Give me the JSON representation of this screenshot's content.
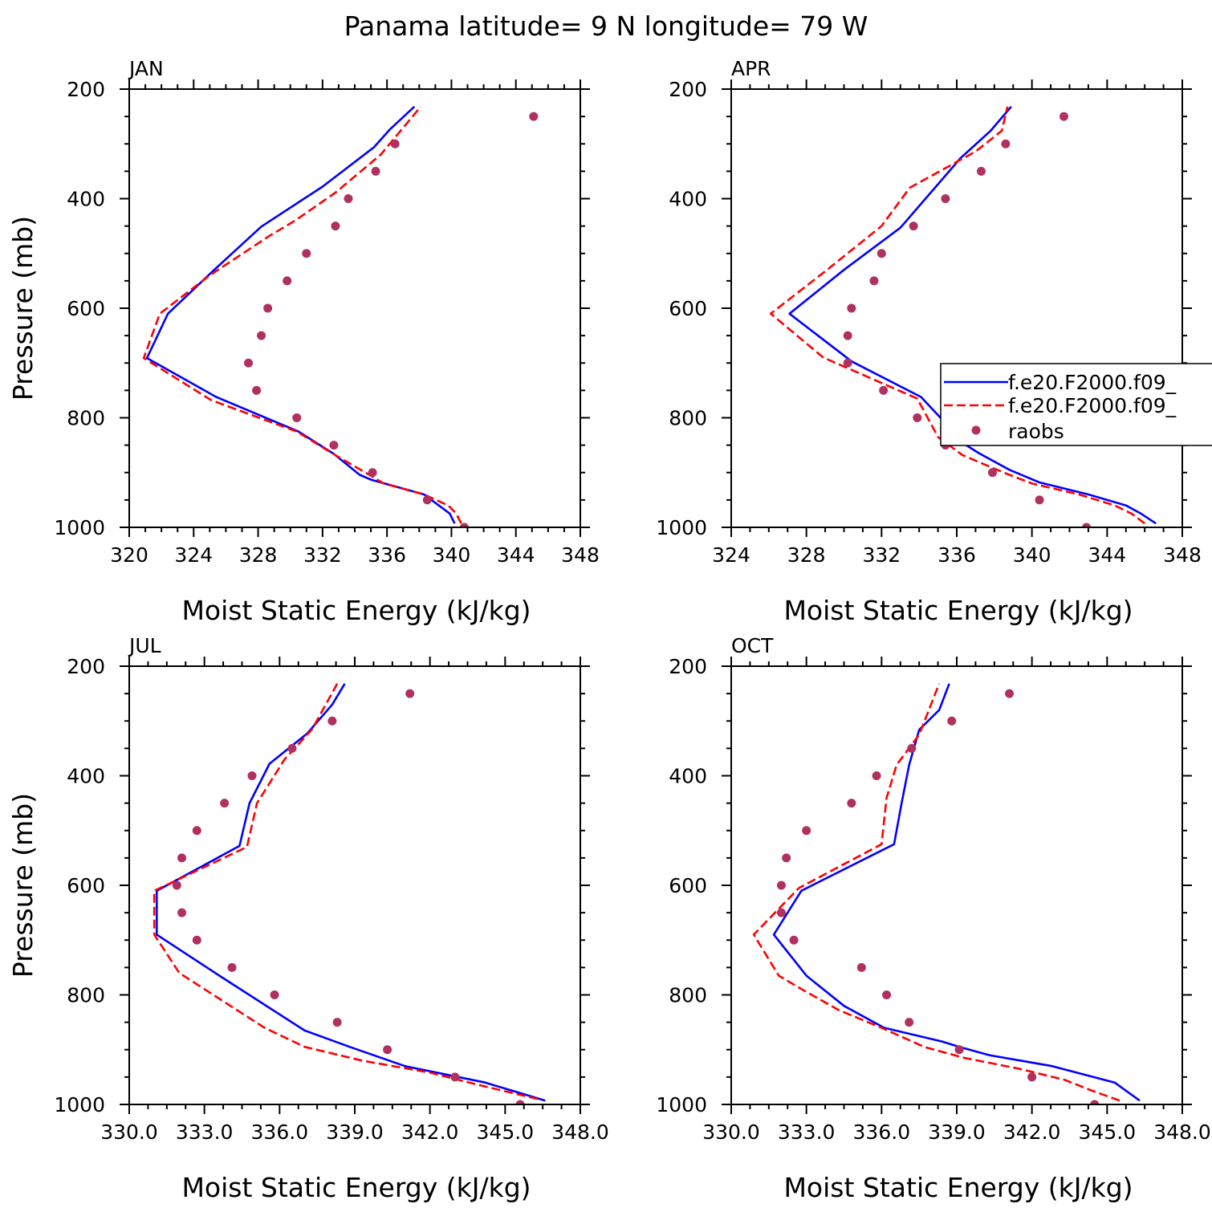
{
  "title": "Panama  latitude= 9 N longitude= 79 W",
  "legend_entries": [
    "f.e20.F2000.f09_",
    "f.e20.F2000.f09_",
    "raobs"
  ],
  "colors": {
    "model_a": "#0000ff",
    "model_b": "#ff0000",
    "raobs": "#b03060"
  },
  "chart_data": [
    {
      "type": "line",
      "panel": "JAN",
      "xlabel": "Moist Static Energy (kJ/kg)",
      "ylabel": "Pressure (mb)",
      "xlim": [
        320,
        348
      ],
      "ylim": [
        1000,
        200
      ],
      "xticks": [
        "320",
        "324",
        "328",
        "332",
        "336",
        "340",
        "344",
        "348"
      ],
      "yticks": [
        "200",
        "400",
        "600",
        "800",
        "1000"
      ],
      "series": [
        {
          "name": "f.e20.F2000.f09_",
          "style": "solid",
          "points": [
            [
              340.2,
              993
            ],
            [
              339.9,
              975
            ],
            [
              338.3,
              940
            ],
            [
              335.0,
              913
            ],
            [
              334.3,
              904
            ],
            [
              332.7,
              866
            ],
            [
              330.5,
              825
            ],
            [
              325.4,
              762
            ],
            [
              321.1,
              691
            ],
            [
              322.4,
              610
            ],
            [
              325.2,
              532
            ],
            [
              328.2,
              451
            ],
            [
              332.0,
              378
            ],
            [
              335.2,
              306
            ],
            [
              336.2,
              273
            ],
            [
              337.7,
              232
            ]
          ]
        },
        {
          "name": "f.e20.F2000.f09_",
          "style": "dashed",
          "points": [
            [
              340.6,
              993
            ],
            [
              340.3,
              975
            ],
            [
              339.8,
              960
            ],
            [
              338.3,
              940
            ],
            [
              335.8,
              920
            ],
            [
              335.0,
              906
            ],
            [
              332.9,
              870
            ],
            [
              330.4,
              825
            ],
            [
              325.1,
              768
            ],
            [
              320.9,
              691
            ],
            [
              321.9,
              610
            ],
            [
              325.0,
              540
            ],
            [
              328.7,
              468
            ],
            [
              330.3,
              440
            ],
            [
              332.8,
              389
            ],
            [
              335.6,
              320
            ],
            [
              338.1,
              232
            ]
          ]
        },
        {
          "name": "raobs",
          "style": "dots",
          "points": [
            [
              340.8,
              1000
            ],
            [
              338.5,
              950
            ],
            [
              335.1,
              900
            ],
            [
              332.7,
              850
            ],
            [
              330.4,
              800
            ],
            [
              327.9,
              750
            ],
            [
              327.4,
              700
            ],
            [
              328.2,
              650
            ],
            [
              328.6,
              600
            ],
            [
              329.8,
              550
            ],
            [
              331.0,
              500
            ],
            [
              332.8,
              450
            ],
            [
              333.6,
              400
            ],
            [
              335.3,
              350
            ],
            [
              336.5,
              300
            ],
            [
              345.1,
              250
            ]
          ]
        }
      ]
    },
    {
      "type": "line",
      "panel": "APR",
      "xlabel": "Moist Static Energy (kJ/kg)",
      "ylabel": "",
      "xlim": [
        324,
        348
      ],
      "ylim": [
        1000,
        200
      ],
      "xticks": [
        "324",
        "328",
        "332",
        "336",
        "340",
        "344",
        "348"
      ],
      "yticks": [
        "200",
        "400",
        "600",
        "800",
        "1000"
      ],
      "series": [
        {
          "name": "f.e20.F2000.f09_",
          "style": "solid",
          "points": [
            [
              346.6,
              993
            ],
            [
              345.8,
              975
            ],
            [
              345.0,
              960
            ],
            [
              343.0,
              940
            ],
            [
              340.4,
              918
            ],
            [
              338.8,
              895
            ],
            [
              337.2,
              865
            ],
            [
              336.5,
              850
            ],
            [
              334.1,
              762
            ],
            [
              330.4,
              697
            ],
            [
              327.1,
              610
            ],
            [
              330.0,
              530
            ],
            [
              333.0,
              453
            ],
            [
              336.2,
              326
            ],
            [
              337.8,
              276
            ],
            [
              338.9,
              232
            ]
          ]
        },
        {
          "name": "f.e20.F2000.f09_",
          "style": "dashed",
          "points": [
            [
              346.0,
              993
            ],
            [
              345.3,
              975
            ],
            [
              344.4,
              960
            ],
            [
              342.5,
              940
            ],
            [
              340.0,
              920
            ],
            [
              338.5,
              900
            ],
            [
              336.3,
              868
            ],
            [
              335.0,
              835
            ],
            [
              333.9,
              765
            ],
            [
              328.9,
              690
            ],
            [
              326.1,
              610
            ],
            [
              329.1,
              530
            ],
            [
              332.0,
              450
            ],
            [
              333.5,
              380
            ],
            [
              337.0,
              314
            ],
            [
              338.4,
              276
            ],
            [
              338.7,
              232
            ]
          ]
        },
        {
          "name": "raobs",
          "style": "dots",
          "points": [
            [
              342.9,
              1000
            ],
            [
              340.4,
              950
            ],
            [
              337.9,
              900
            ],
            [
              335.4,
              850
            ],
            [
              333.9,
              800
            ],
            [
              332.1,
              750
            ],
            [
              330.2,
              700
            ],
            [
              330.2,
              650
            ],
            [
              330.4,
              600
            ],
            [
              331.6,
              550
            ],
            [
              332.0,
              500
            ],
            [
              333.7,
              450
            ],
            [
              335.4,
              400
            ],
            [
              337.3,
              350
            ],
            [
              338.6,
              300
            ],
            [
              341.7,
              250
            ]
          ]
        }
      ]
    },
    {
      "type": "line",
      "panel": "JUL",
      "xlabel": "Moist Static Energy (kJ/kg)",
      "ylabel": "Pressure (mb)",
      "xlim": [
        330,
        348
      ],
      "ylim": [
        1000,
        200
      ],
      "xticks": [
        "330.0",
        "333.0",
        "336.0",
        "339.0",
        "342.0",
        "345.0",
        "348.0"
      ],
      "yticks": [
        "200",
        "400",
        "600",
        "800",
        "1000"
      ],
      "series": [
        {
          "name": "f.e20.F2000.f09_",
          "style": "solid",
          "points": [
            [
              346.6,
              993
            ],
            [
              344.2,
              960
            ],
            [
              341.0,
              930
            ],
            [
              338.8,
              895
            ],
            [
              337.0,
              865
            ],
            [
              333.6,
              765
            ],
            [
              331.1,
              690
            ],
            [
              331.1,
              610
            ],
            [
              334.4,
              528
            ],
            [
              334.8,
              450
            ],
            [
              335.6,
              378
            ],
            [
              337.1,
              323
            ],
            [
              338.1,
              270
            ],
            [
              338.6,
              232
            ]
          ]
        },
        {
          "name": "f.e20.F2000.f09_",
          "style": "dashed",
          "points": [
            [
              346.3,
              990
            ],
            [
              344.0,
              965
            ],
            [
              342.0,
              942
            ],
            [
              339.3,
              920
            ],
            [
              337.0,
              895
            ],
            [
              335.4,
              860
            ],
            [
              332.0,
              760
            ],
            [
              331.0,
              690
            ],
            [
              331.0,
              610
            ],
            [
              334.7,
              530
            ],
            [
              335.1,
              450
            ],
            [
              336.2,
              370
            ],
            [
              337.3,
              315
            ],
            [
              338.3,
              232
            ]
          ]
        },
        {
          "name": "raobs",
          "style": "dots",
          "points": [
            [
              345.6,
              1000
            ],
            [
              343.0,
              950
            ],
            [
              340.3,
              900
            ],
            [
              338.3,
              850
            ],
            [
              335.8,
              800
            ],
            [
              334.1,
              750
            ],
            [
              332.7,
              700
            ],
            [
              332.1,
              650
            ],
            [
              331.9,
              600
            ],
            [
              332.1,
              550
            ],
            [
              332.7,
              500
            ],
            [
              333.8,
              450
            ],
            [
              334.9,
              400
            ],
            [
              336.5,
              350
            ],
            [
              338.1,
              300
            ],
            [
              341.2,
              250
            ]
          ]
        }
      ]
    },
    {
      "type": "line",
      "panel": "OCT",
      "xlabel": "Moist Static Energy (kJ/kg)",
      "ylabel": "",
      "xlim": [
        330,
        348
      ],
      "ylim": [
        1000,
        200
      ],
      "xticks": [
        "330.0",
        "333.0",
        "336.0",
        "339.0",
        "342.0",
        "345.0",
        "348.0"
      ],
      "yticks": [
        "200",
        "400",
        "600",
        "800",
        "1000"
      ],
      "series": [
        {
          "name": "f.e20.F2000.f09_",
          "style": "solid",
          "points": [
            [
              346.3,
              993
            ],
            [
              345.3,
              960
            ],
            [
              342.8,
              930
            ],
            [
              340.3,
              910
            ],
            [
              339.1,
              895
            ],
            [
              338.4,
              885
            ],
            [
              336.1,
              860
            ],
            [
              334.5,
              820
            ],
            [
              333.0,
              765
            ],
            [
              331.7,
              690
            ],
            [
              332.8,
              610
            ],
            [
              336.5,
              525
            ],
            [
              336.8,
              450
            ],
            [
              337.1,
              380
            ],
            [
              337.5,
              316
            ],
            [
              338.3,
              280
            ],
            [
              338.7,
              232
            ]
          ]
        },
        {
          "name": "f.e20.F2000.f09_",
          "style": "dashed",
          "points": [
            [
              345.5,
              993
            ],
            [
              344.4,
              975
            ],
            [
              343.3,
              955
            ],
            [
              341.5,
              935
            ],
            [
              339.3,
              915
            ],
            [
              337.7,
              895
            ],
            [
              336.0,
              860
            ],
            [
              334.3,
              828
            ],
            [
              332.9,
              792
            ],
            [
              331.9,
              765
            ],
            [
              330.9,
              690
            ],
            [
              332.7,
              605
            ],
            [
              336.0,
              525
            ],
            [
              336.2,
              440
            ],
            [
              336.6,
              380
            ],
            [
              337.5,
              325
            ],
            [
              338.3,
              232
            ]
          ]
        },
        {
          "name": "raobs",
          "style": "dots",
          "points": [
            [
              344.5,
              1000
            ],
            [
              342.0,
              950
            ],
            [
              339.1,
              900
            ],
            [
              337.1,
              850
            ],
            [
              336.2,
              800
            ],
            [
              335.2,
              750
            ],
            [
              332.5,
              700
            ],
            [
              332.0,
              650
            ],
            [
              332.0,
              600
            ],
            [
              332.2,
              550
            ],
            [
              333.0,
              500
            ],
            [
              334.8,
              450
            ],
            [
              335.8,
              400
            ],
            [
              337.2,
              350
            ],
            [
              338.8,
              300
            ],
            [
              341.1,
              250
            ]
          ]
        }
      ]
    }
  ]
}
